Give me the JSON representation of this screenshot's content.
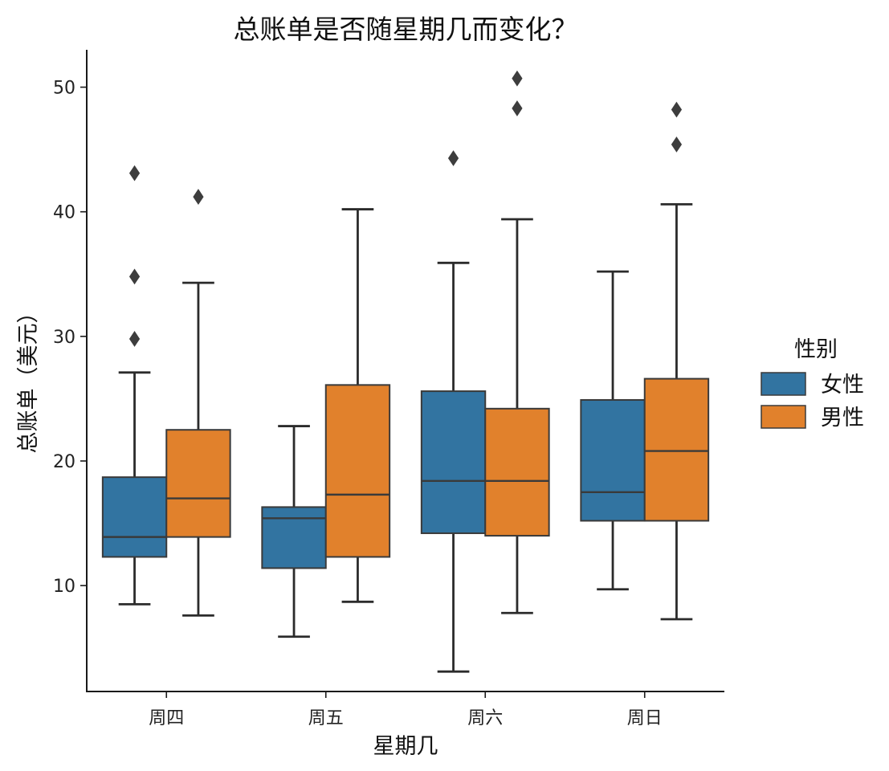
{
  "chart_data": {
    "type": "box",
    "title": "总账单是否随星期几而变化？",
    "xlabel": "星期几",
    "ylabel": "总账单（美元）",
    "categories": [
      "周四",
      "周五",
      "周六",
      "周日"
    ],
    "ylim": [
      1.5,
      53
    ],
    "yticks": [
      10,
      20,
      30,
      40,
      50
    ],
    "grid": false,
    "legend": {
      "title": "性别",
      "placement": "right"
    },
    "series": [
      {
        "name": "女性",
        "color": "#3274a1",
        "boxes": [
          {
            "whisker_low": 8.5,
            "q1": 12.3,
            "median": 13.9,
            "q3": 18.7,
            "whisker_high": 27.1,
            "outliers": [
              29.8,
              34.8,
              43.1
            ]
          },
          {
            "whisker_low": 5.9,
            "q1": 11.4,
            "median": 15.4,
            "q3": 16.3,
            "whisker_high": 22.8,
            "outliers": []
          },
          {
            "whisker_low": 3.1,
            "q1": 14.2,
            "median": 18.4,
            "q3": 25.6,
            "whisker_high": 35.9,
            "outliers": [
              44.3
            ]
          },
          {
            "whisker_low": 9.7,
            "q1": 15.2,
            "median": 17.5,
            "q3": 24.9,
            "whisker_high": 35.2,
            "outliers": []
          }
        ]
      },
      {
        "name": "男性",
        "color": "#e1812c",
        "boxes": [
          {
            "whisker_low": 7.6,
            "q1": 13.9,
            "median": 17.0,
            "q3": 22.5,
            "whisker_high": 34.3,
            "outliers": [
              41.2
            ]
          },
          {
            "whisker_low": 8.7,
            "q1": 12.3,
            "median": 17.3,
            "q3": 26.1,
            "whisker_high": 40.2,
            "outliers": []
          },
          {
            "whisker_low": 7.8,
            "q1": 14.0,
            "median": 18.4,
            "q3": 24.2,
            "whisker_high": 39.4,
            "outliers": [
              48.3,
              50.7
            ]
          },
          {
            "whisker_low": 7.3,
            "q1": 15.2,
            "median": 20.8,
            "q3": 26.6,
            "whisker_high": 40.6,
            "outliers": [
              45.4,
              48.2
            ]
          }
        ]
      }
    ]
  }
}
